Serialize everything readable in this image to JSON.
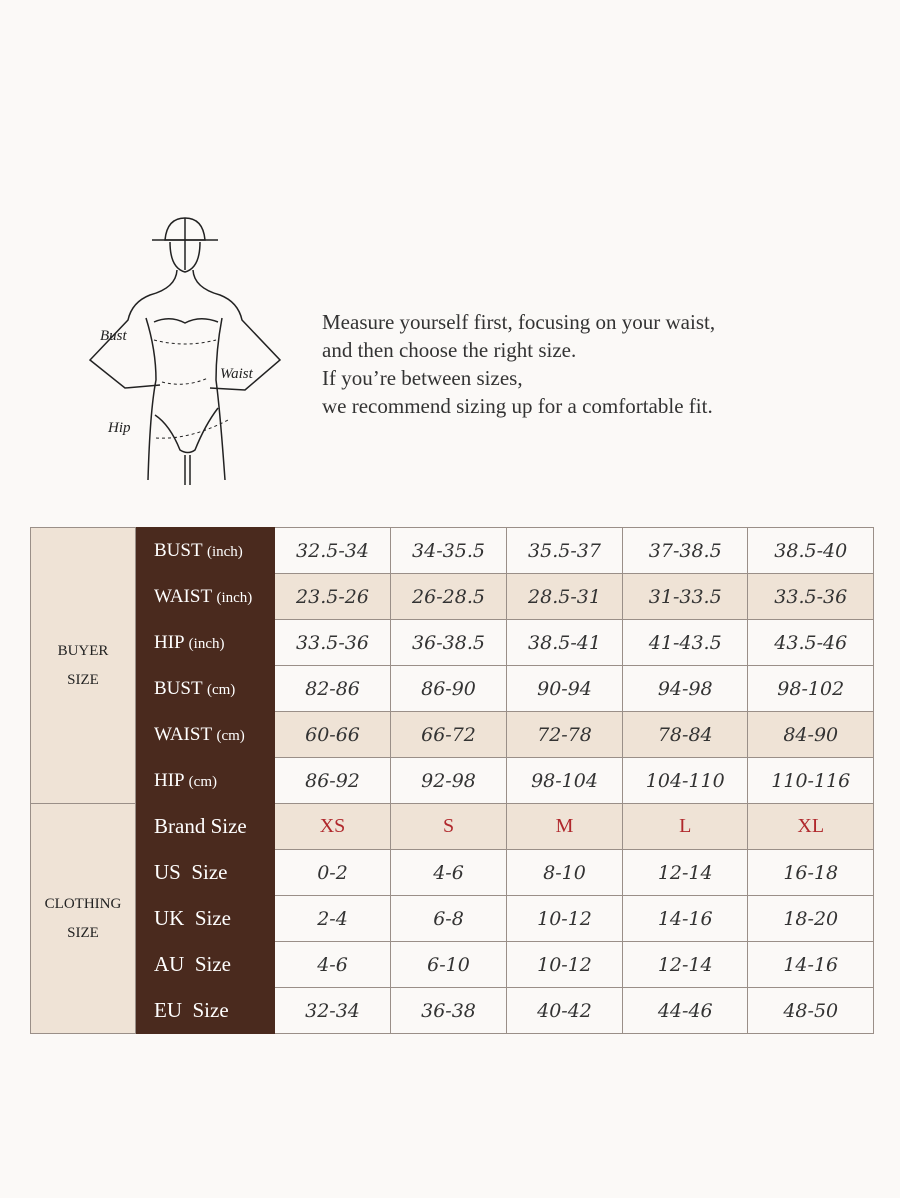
{
  "figure": {
    "labels": {
      "bust": "Bust",
      "waist": "Waist",
      "hip": "Hip"
    }
  },
  "intro": [
    "Measure yourself first, focusing on your waist,",
    "and then choose the right size.",
    "If you’re between sizes,",
    "we recommend sizing up for a comfortable fit."
  ],
  "colors": {
    "label_bg": "#4a2a1e",
    "highlight_row": "#efe3d6",
    "brand_size_text": "#b0282c"
  },
  "table": {
    "groups": {
      "buyer": [
        "BUYER",
        "SIZE"
      ],
      "clothing": [
        "CLOTHING",
        "SIZE"
      ]
    },
    "buyer_rows": [
      {
        "label": "BUST",
        "unit": "(inch)",
        "values": [
          "32.5-34",
          "34-35.5",
          "35.5-37",
          "37-38.5",
          "38.5-40"
        ]
      },
      {
        "label": "WAIST",
        "unit": "(inch)",
        "values": [
          "23.5-26",
          "26-28.5",
          "28.5-31",
          "31-33.5",
          "33.5-36"
        ]
      },
      {
        "label": "HIP",
        "unit": "(inch)",
        "values": [
          "33.5-36",
          "36-38.5",
          "38.5-41",
          "41-43.5",
          "43.5-46"
        ]
      },
      {
        "label": "BUST",
        "unit": "(cm)",
        "values": [
          "82-86",
          "86-90",
          "90-94",
          "94-98",
          "98-102"
        ]
      },
      {
        "label": "WAIST",
        "unit": "(cm)",
        "values": [
          "60-66",
          "66-72",
          "72-78",
          "78-84",
          "84-90"
        ]
      },
      {
        "label": "HIP",
        "unit": "(cm)",
        "values": [
          "86-92",
          "92-98",
          "98-104",
          "104-110",
          "110-116"
        ]
      }
    ],
    "clothing_rows": [
      {
        "label": "Brand Size",
        "values": [
          "XS",
          "S",
          "M",
          "L",
          "XL"
        ]
      },
      {
        "label": "US  Size",
        "values": [
          "0-2",
          "4-6",
          "8-10",
          "12-14",
          "16-18"
        ]
      },
      {
        "label": "UK  Size",
        "values": [
          "2-4",
          "6-8",
          "10-12",
          "14-16",
          "18-20"
        ]
      },
      {
        "label": "AU  Size",
        "values": [
          "4-6",
          "6-10",
          "10-12",
          "12-14",
          "14-16"
        ]
      },
      {
        "label": "EU  Size",
        "values": [
          "32-34",
          "36-38",
          "40-42",
          "44-46",
          "48-50"
        ]
      }
    ]
  }
}
